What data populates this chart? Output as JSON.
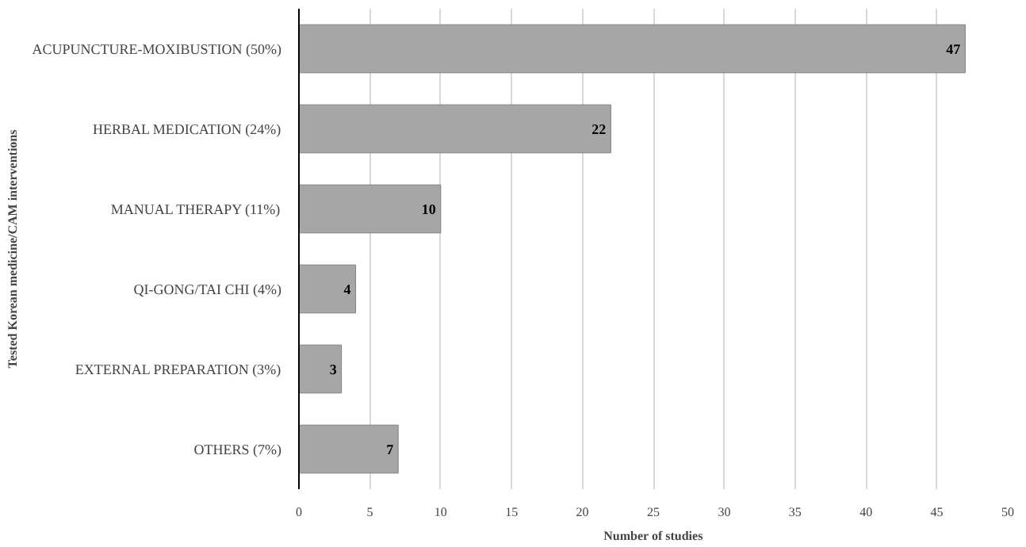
{
  "chart_data": {
    "type": "bar",
    "orientation": "horizontal",
    "xlabel": "Number of studies",
    "ylabel": "Tested Korean medicine/CAM interventions",
    "categories": [
      "ACUPUNCTURE-MOXIBUSTION (50%)",
      "HERBAL MEDICATION (24%)",
      "MANUAL THERAPY (11%)",
      "QI-GONG/TAI CHI (4%)",
      "EXTERNAL PREPARATION (3%)",
      "OTHERS (7%)"
    ],
    "values": [
      47,
      22,
      10,
      4,
      3,
      7
    ],
    "color": "#a6a6a6",
    "xlim": [
      0,
      50
    ],
    "xticks": [
      0,
      5,
      10,
      15,
      20,
      25,
      30,
      35,
      40,
      45,
      50
    ],
    "grid": "x",
    "data_labels": true
  }
}
